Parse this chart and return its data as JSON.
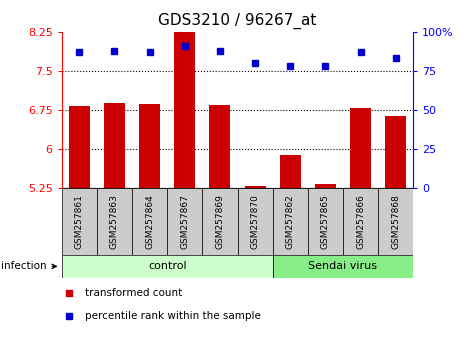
{
  "title": "GDS3210 / 96267_at",
  "samples": [
    "GSM257861",
    "GSM257863",
    "GSM257864",
    "GSM257867",
    "GSM257869",
    "GSM257870",
    "GSM257862",
    "GSM257865",
    "GSM257866",
    "GSM257868"
  ],
  "transformed_counts": [
    6.82,
    6.88,
    6.87,
    8.3,
    6.85,
    5.28,
    5.87,
    5.32,
    6.78,
    6.63
  ],
  "percentile_ranks": [
    87,
    88,
    87,
    91,
    88,
    80,
    78,
    78,
    87,
    83
  ],
  "groups": [
    "control",
    "control",
    "control",
    "control",
    "control",
    "control",
    "Sendai virus",
    "Sendai virus",
    "Sendai virus",
    "Sendai virus"
  ],
  "ylim_left": [
    5.25,
    8.25
  ],
  "ylim_right": [
    0,
    100
  ],
  "yticks_left": [
    5.25,
    6.0,
    6.75,
    7.5,
    8.25
  ],
  "yticks_right": [
    0,
    25,
    50,
    75,
    100
  ],
  "ytick_labels_left": [
    "5.25",
    "6",
    "6.75",
    "7.5",
    "8.25"
  ],
  "ytick_labels_right": [
    "0",
    "25",
    "50",
    "75",
    "100%"
  ],
  "hlines": [
    6.0,
    6.75,
    7.5
  ],
  "bar_color": "#cc0000",
  "dot_color": "#0000cc",
  "control_color": "#ccffcc",
  "sendai_color": "#88ee88",
  "label_bg_color": "#cccccc",
  "infection_label": "infection",
  "legend_bar_label": "transformed count",
  "legend_dot_label": "percentile rank within the sample",
  "title_fontsize": 11,
  "tick_fontsize": 8,
  "bar_width": 0.6
}
